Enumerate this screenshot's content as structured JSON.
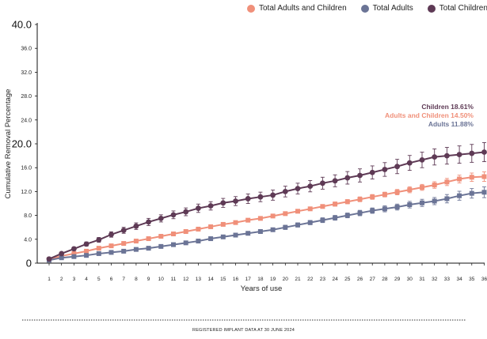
{
  "legend": {
    "items": [
      {
        "label": "Total Adults and Children",
        "color": "#f0907a"
      },
      {
        "label": "Total Adults",
        "color": "#6b7496"
      },
      {
        "label": "Total Children",
        "color": "#5e3a55"
      }
    ]
  },
  "footer": {
    "text": "REGISTERED IMPLANT DATA AT 30 JUNE 2024"
  },
  "chart_data": {
    "type": "line",
    "xlabel": "Years of use",
    "ylabel": "Cumulative Removal Percentage",
    "ylim": [
      0,
      40
    ],
    "yticks": [
      0,
      4,
      8,
      12,
      16,
      20,
      24,
      28,
      32,
      36,
      40
    ],
    "ytick_labels": [
      "0",
      "4.0",
      "8.0",
      "12.0",
      "16.0",
      "20.0",
      "24.0",
      "28.0",
      "32.0",
      "36.0",
      "40.0"
    ],
    "x": [
      1,
      2,
      3,
      4,
      5,
      6,
      7,
      8,
      9,
      10,
      11,
      12,
      13,
      14,
      15,
      16,
      17,
      18,
      19,
      20,
      21,
      22,
      23,
      24,
      25,
      26,
      27,
      28,
      29,
      30,
      31,
      32,
      33,
      34,
      35,
      36
    ],
    "xtick_labels": [
      "1",
      "2",
      "3",
      "4",
      "5",
      "6",
      "7",
      "8",
      "9",
      "10",
      "11",
      "12",
      "13",
      "14",
      "15",
      "16",
      "17",
      "18",
      "19",
      "20",
      "21",
      "22",
      "23",
      "24",
      "25",
      "26",
      "27",
      "28",
      "29",
      "30",
      "31",
      "32",
      "33",
      "34",
      "35",
      "36"
    ],
    "grid": false,
    "legend_position": "top-right",
    "series": [
      {
        "name": "Total Adults and Children",
        "color": "#f0907a",
        "marker": "square",
        "values": [
          0.6,
          1.2,
          1.6,
          2.0,
          2.5,
          2.9,
          3.3,
          3.7,
          4.1,
          4.5,
          4.9,
          5.3,
          5.7,
          6.1,
          6.5,
          6.8,
          7.2,
          7.5,
          7.9,
          8.3,
          8.7,
          9.1,
          9.5,
          9.9,
          10.3,
          10.7,
          11.1,
          11.5,
          11.9,
          12.3,
          12.7,
          13.1,
          13.6,
          14.1,
          14.4,
          14.5
        ],
        "errors": [
          0.1,
          0.1,
          0.1,
          0.1,
          0.1,
          0.1,
          0.15,
          0.15,
          0.15,
          0.15,
          0.2,
          0.2,
          0.2,
          0.2,
          0.2,
          0.25,
          0.25,
          0.25,
          0.25,
          0.3,
          0.3,
          0.3,
          0.3,
          0.35,
          0.35,
          0.4,
          0.4,
          0.4,
          0.45,
          0.5,
          0.5,
          0.55,
          0.6,
          0.65,
          0.7,
          0.8
        ]
      },
      {
        "name": "Total Adults",
        "color": "#6b7496",
        "marker": "square",
        "values": [
          0.5,
          0.9,
          1.1,
          1.3,
          1.6,
          1.8,
          2.0,
          2.3,
          2.5,
          2.8,
          3.1,
          3.4,
          3.7,
          4.1,
          4.4,
          4.7,
          5.0,
          5.3,
          5.6,
          6.0,
          6.4,
          6.8,
          7.2,
          7.6,
          8.0,
          8.4,
          8.8,
          9.1,
          9.4,
          9.8,
          10.1,
          10.4,
          10.8,
          11.3,
          11.7,
          11.88
        ],
        "errors": [
          0.1,
          0.1,
          0.1,
          0.15,
          0.15,
          0.15,
          0.15,
          0.2,
          0.2,
          0.2,
          0.2,
          0.25,
          0.25,
          0.25,
          0.25,
          0.3,
          0.3,
          0.3,
          0.3,
          0.35,
          0.35,
          0.35,
          0.4,
          0.4,
          0.4,
          0.45,
          0.45,
          0.5,
          0.5,
          0.55,
          0.6,
          0.6,
          0.7,
          0.75,
          0.8,
          0.9
        ]
      },
      {
        "name": "Total Children",
        "color": "#5e3a55",
        "marker": "circle",
        "values": [
          0.7,
          1.6,
          2.4,
          3.2,
          3.9,
          4.8,
          5.5,
          6.2,
          6.9,
          7.5,
          8.1,
          8.6,
          9.2,
          9.6,
          10.1,
          10.4,
          10.8,
          11.1,
          11.4,
          12.0,
          12.5,
          12.9,
          13.4,
          13.8,
          14.3,
          14.7,
          15.2,
          15.7,
          16.2,
          16.8,
          17.3,
          17.8,
          18.0,
          18.2,
          18.4,
          18.61
        ],
        "errors": [
          0.15,
          0.2,
          0.3,
          0.35,
          0.4,
          0.45,
          0.5,
          0.55,
          0.6,
          0.6,
          0.65,
          0.65,
          0.7,
          0.7,
          0.75,
          0.75,
          0.8,
          0.8,
          0.85,
          0.9,
          0.9,
          0.95,
          1.0,
          1.0,
          1.05,
          1.1,
          1.1,
          1.15,
          1.2,
          1.25,
          1.3,
          1.35,
          1.4,
          1.45,
          1.5,
          1.6
        ]
      }
    ],
    "annotations": [
      {
        "text": "Children 18.61%",
        "color": "#5e3a55"
      },
      {
        "text": "Adults and Children 14.50%",
        "color": "#f0907a"
      },
      {
        "text": "Adults 11.88%",
        "color": "#6b7496"
      }
    ]
  }
}
